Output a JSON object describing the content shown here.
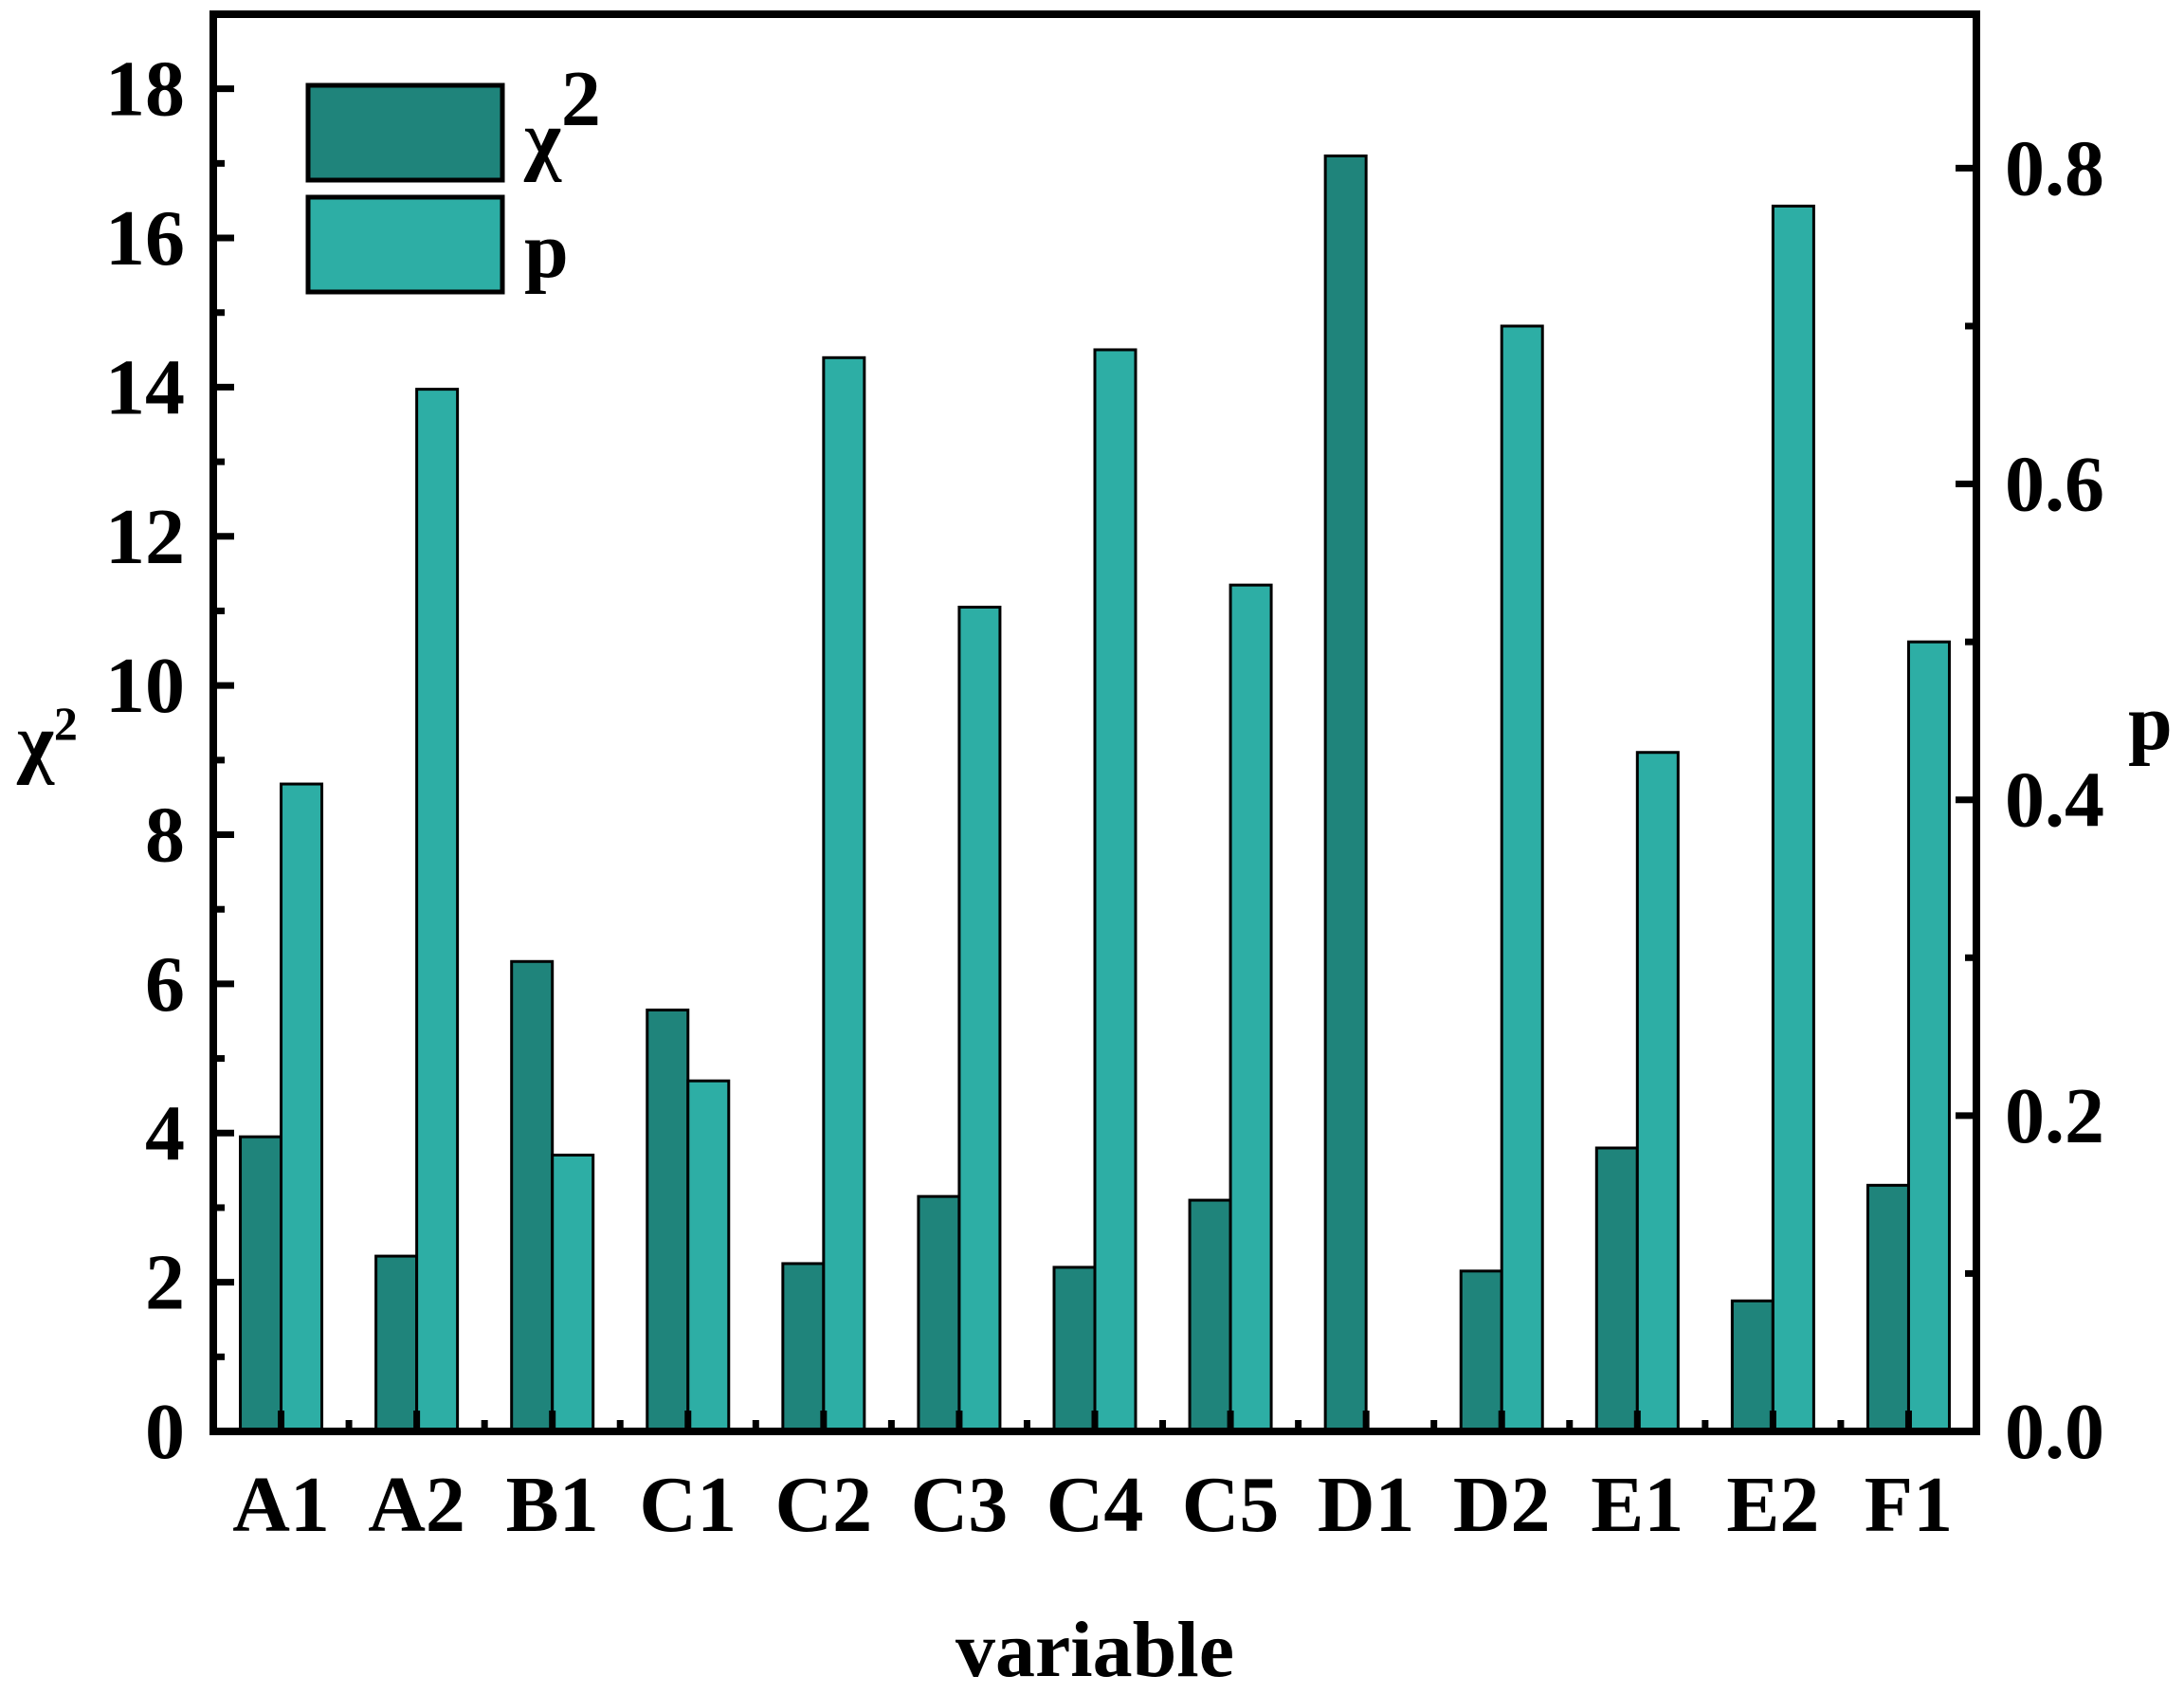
{
  "chart_data": {
    "type": "bar",
    "categories": [
      "A1",
      "A2",
      "B1",
      "C1",
      "C2",
      "C3",
      "C4",
      "C5",
      "D1",
      "D2",
      "E1",
      "E2",
      "F1"
    ],
    "series": [
      {
        "name": "χ",
        "name_superscript": "2",
        "axis": "left",
        "color": "#1f847b",
        "values": [
          3.95,
          2.35,
          6.3,
          5.65,
          2.25,
          3.15,
          2.2,
          3.1,
          17.1,
          2.15,
          3.8,
          1.75,
          3.3
        ]
      },
      {
        "name": "p",
        "axis": "right",
        "color": "#2daea5",
        "values": [
          0.41,
          0.66,
          0.175,
          0.222,
          0.68,
          0.522,
          0.685,
          0.536,
          0.0,
          0.7,
          0.43,
          0.776,
          0.5
        ]
      }
    ],
    "xlabel": "variable",
    "ylabel_left": "χ",
    "ylabel_left_superscript": "2",
    "ylabel_right": "p",
    "ylim_left": [
      0,
      19
    ],
    "ylim_right": [
      0,
      0.8975
    ],
    "yticks_left": [
      "0",
      "2",
      "4",
      "6",
      "8",
      "10",
      "12",
      "14",
      "16",
      "18"
    ],
    "yticks_right": [
      "0.0",
      "0.2",
      "0.4",
      "0.6",
      "0.8"
    ],
    "legend_position": "top-left",
    "grid": false
  }
}
